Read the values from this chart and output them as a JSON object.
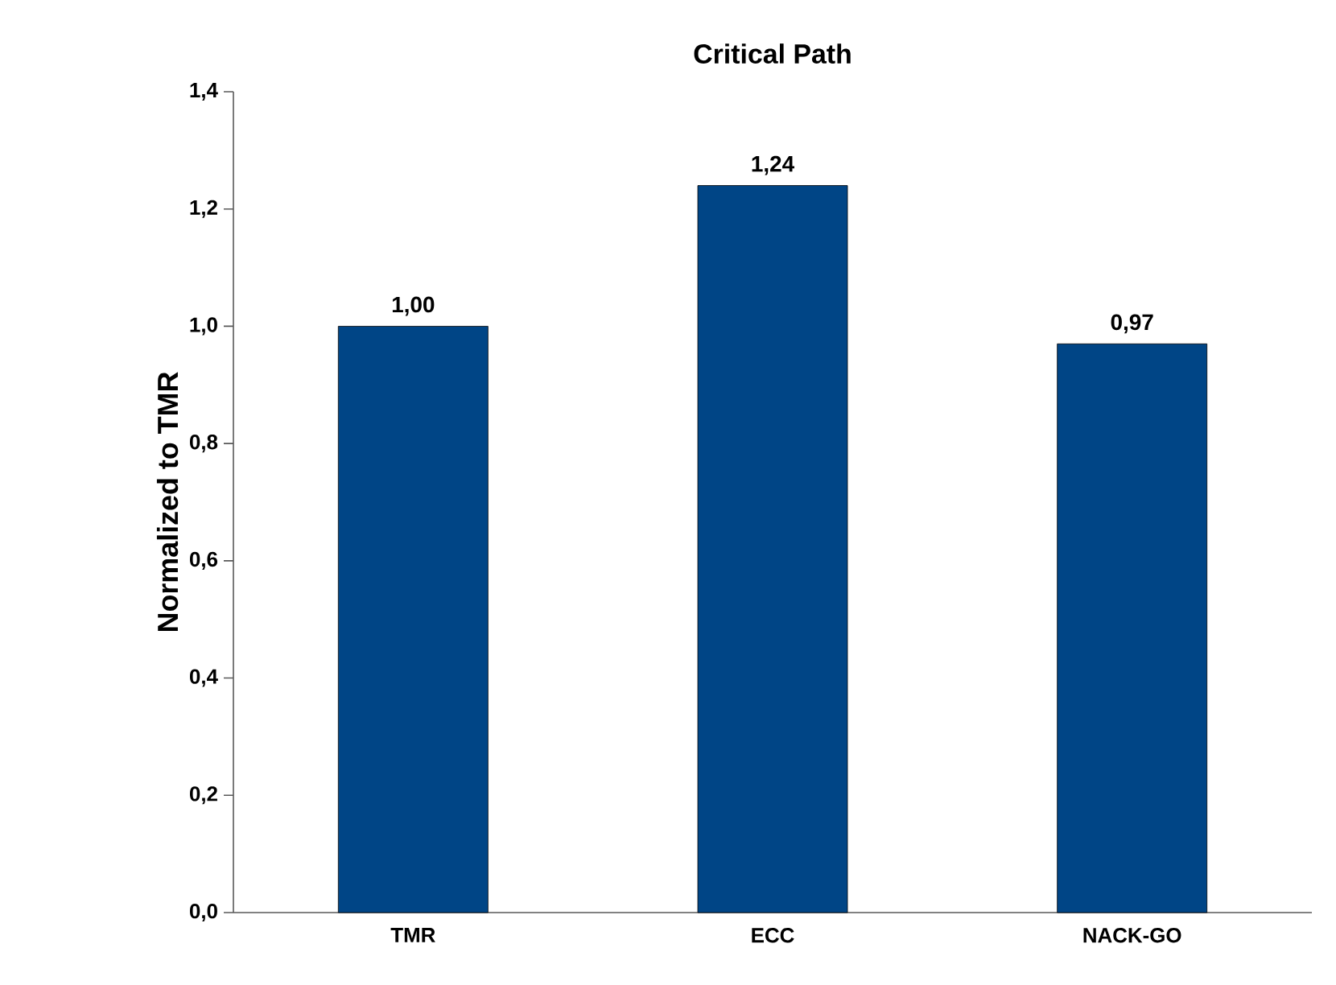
{
  "chart_data": {
    "type": "bar",
    "title": "Critical Path",
    "ylabel": "Normalized to TMR",
    "categories": [
      "TMR",
      "ECC",
      "NACK-GO"
    ],
    "values": [
      1.0,
      1.24,
      0.97
    ],
    "value_labels": [
      "1,00",
      "1,24",
      "0,97"
    ],
    "color": "#004586",
    "ylim": [
      0,
      1.4
    ],
    "yticks": [
      {
        "value": 0,
        "label": "0,0"
      },
      {
        "value": 0.2,
        "label": "0,2"
      },
      {
        "value": 0.4,
        "label": "0,4"
      },
      {
        "value": 0.6,
        "label": "0,6"
      },
      {
        "value": 0.8,
        "label": "0,8"
      },
      {
        "value": 1.0,
        "label": "1,0"
      },
      {
        "value": 1.2,
        "label": "1,2"
      },
      {
        "value": 1.4,
        "label": "1,4"
      }
    ]
  }
}
